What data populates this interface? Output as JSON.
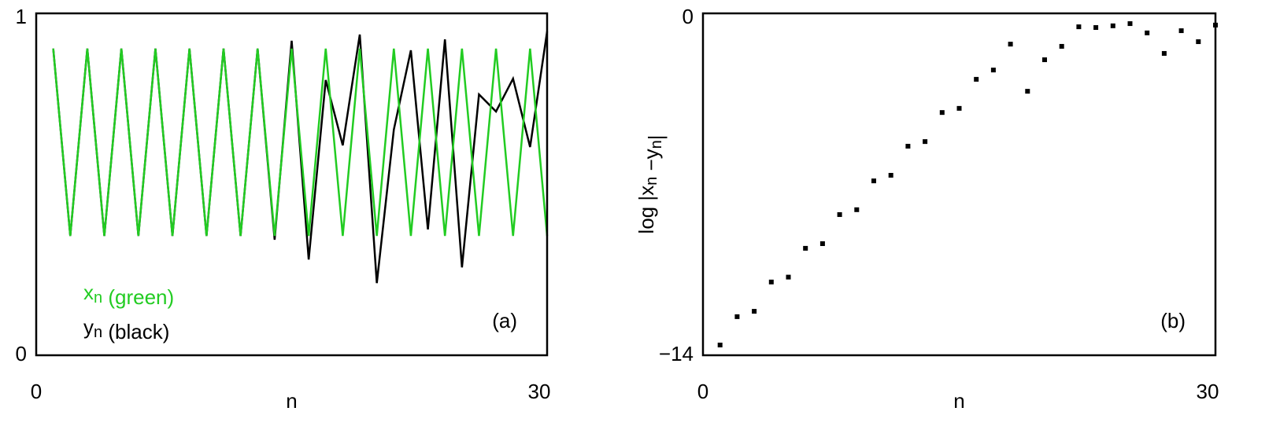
{
  "chart_data": [
    {
      "type": "line",
      "xlim": [
        0,
        30
      ],
      "xticks": [
        0,
        30
      ],
      "ylim": [
        0,
        1
      ],
      "yticks": [
        0,
        1
      ],
      "x_label": "n",
      "annotation": "(a)",
      "x": [
        1,
        2,
        3,
        4,
        5,
        6,
        7,
        8,
        9,
        10,
        11,
        12,
        13,
        14,
        15,
        16,
        17,
        18,
        19,
        20,
        21,
        22,
        23,
        24,
        25,
        26,
        27,
        28,
        29,
        30
      ],
      "series": [
        {
          "name": "xn (green)",
          "color": "#22cc22",
          "values": [
            0.897,
            0.349,
            0.897,
            0.349,
            0.897,
            0.349,
            0.897,
            0.349,
            0.897,
            0.349,
            0.897,
            0.349,
            0.897,
            0.349,
            0.897,
            0.349,
            0.897,
            0.349,
            0.897,
            0.349,
            0.897,
            0.349,
            0.897,
            0.349,
            0.897,
            0.349,
            0.897,
            0.349,
            0.897,
            0.349
          ]
        },
        {
          "name": "yn (black)",
          "color": "#000000",
          "values": [
            0.897,
            0.349,
            0.897,
            0.349,
            0.897,
            0.349,
            0.897,
            0.349,
            0.897,
            0.349,
            0.897,
            0.349,
            0.897,
            0.338,
            0.92,
            0.28,
            0.805,
            0.614,
            0.938,
            0.211,
            0.66,
            0.892,
            0.368,
            0.924,
            0.257,
            0.763,
            0.713,
            0.809,
            0.609,
            0.947
          ]
        }
      ]
    },
    {
      "type": "scatter",
      "xlim": [
        0,
        30
      ],
      "xticks": [
        0,
        30
      ],
      "ylim": [
        -14,
        0
      ],
      "yticks": [
        {
          "value": -14,
          "label": "−14"
        },
        0
      ],
      "x_label": "n",
      "y_label": "log |xn −yn|",
      "annotation": "(b)",
      "color": "#000000",
      "x": [
        1,
        2,
        3,
        4,
        5,
        6,
        7,
        8,
        9,
        10,
        11,
        12,
        13,
        14,
        15,
        16,
        17,
        18,
        19,
        20,
        21,
        22,
        23,
        24,
        25,
        26,
        27,
        28,
        29,
        30
      ],
      "values": [
        -13.58,
        -12.42,
        -12.2,
        -11.0,
        -10.8,
        -9.62,
        -9.43,
        -8.24,
        -8.04,
        -6.86,
        -6.63,
        -5.44,
        -5.25,
        -4.06,
        -3.89,
        -2.7,
        -2.32,
        -1.26,
        -3.19,
        -1.9,
        -1.35,
        -0.55,
        -0.58,
        -0.51,
        -0.42,
        -0.8,
        -1.64,
        -0.71,
        -1.16,
        -0.48
      ]
    }
  ]
}
